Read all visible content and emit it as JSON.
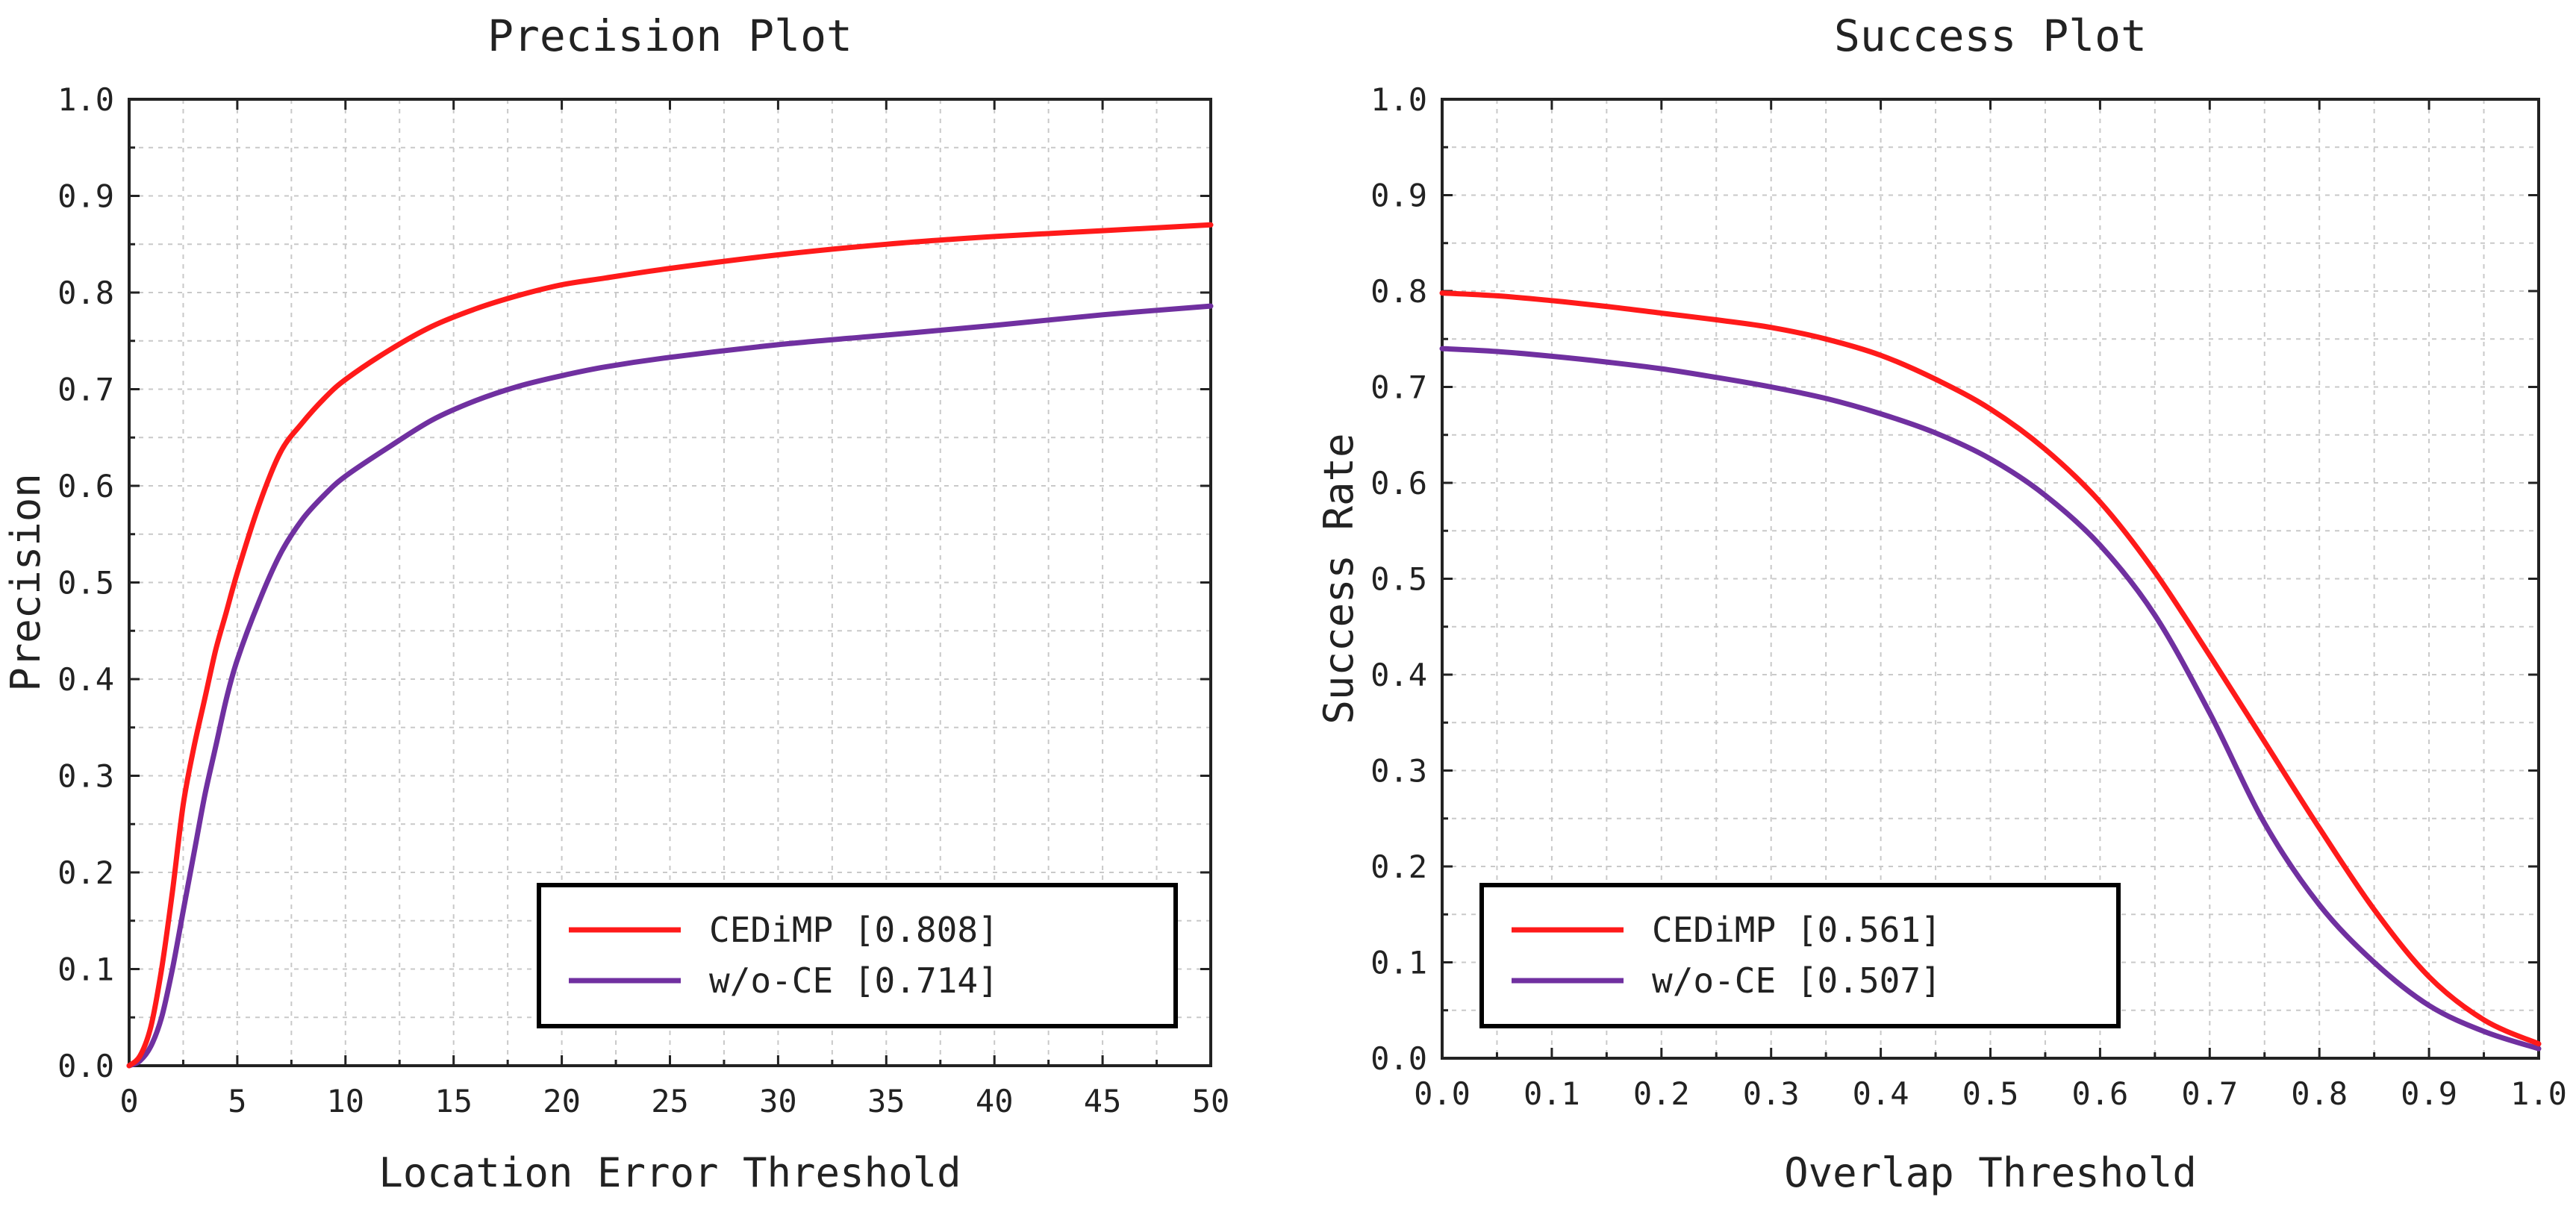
{
  "chart_data": [
    {
      "type": "line",
      "title": "Precision Plot",
      "xlabel": "Location Error Threshold",
      "ylabel": "Precision",
      "xlim": [
        0,
        50
      ],
      "ylim": [
        0,
        1
      ],
      "xticks": [
        "0",
        "5",
        "10",
        "15",
        "20",
        "25",
        "30",
        "35",
        "40",
        "45",
        "50"
      ],
      "yticks": [
        "0.0",
        "0.1",
        "0.2",
        "0.3",
        "0.4",
        "0.5",
        "0.6",
        "0.7",
        "0.8",
        "0.9",
        "1.0"
      ],
      "grid": true,
      "legend_position": "bottom-right",
      "x": [
        0,
        0.5,
        1,
        1.5,
        2,
        2.5,
        3,
        3.5,
        4,
        4.5,
        5,
        6,
        7,
        8,
        9,
        10,
        12,
        14,
        16,
        18,
        20,
        22,
        25,
        30,
        35,
        40,
        45,
        50
      ],
      "series": [
        {
          "name": "CEDiMP [0.808]",
          "color": "#ff1a1a",
          "values": [
            0.0,
            0.01,
            0.04,
            0.1,
            0.18,
            0.27,
            0.33,
            0.38,
            0.43,
            0.47,
            0.51,
            0.58,
            0.635,
            0.665,
            0.69,
            0.71,
            0.74,
            0.765,
            0.783,
            0.797,
            0.808,
            0.815,
            0.825,
            0.839,
            0.85,
            0.858,
            0.864,
            0.87
          ]
        },
        {
          "name": "w/o-CE [0.714]",
          "color": "#7030a0",
          "values": [
            0.0,
            0.005,
            0.02,
            0.05,
            0.1,
            0.16,
            0.22,
            0.28,
            0.33,
            0.38,
            0.42,
            0.48,
            0.53,
            0.565,
            0.59,
            0.61,
            0.64,
            0.668,
            0.688,
            0.703,
            0.714,
            0.723,
            0.733,
            0.746,
            0.756,
            0.766,
            0.777,
            0.786
          ]
        }
      ]
    },
    {
      "type": "line",
      "title": "Success Plot",
      "xlabel": "Overlap Threshold",
      "ylabel": "Success Rate",
      "xlim": [
        0,
        1
      ],
      "ylim": [
        0,
        1
      ],
      "xticks": [
        "0.0",
        "0.1",
        "0.2",
        "0.3",
        "0.4",
        "0.5",
        "0.6",
        "0.7",
        "0.8",
        "0.9",
        "1.0"
      ],
      "yticks": [
        "0.0",
        "0.1",
        "0.2",
        "0.3",
        "0.4",
        "0.5",
        "0.6",
        "0.7",
        "0.8",
        "0.9",
        "1.0"
      ],
      "grid": true,
      "legend_position": "bottom-left",
      "x": [
        0,
        0.05,
        0.1,
        0.15,
        0.2,
        0.25,
        0.3,
        0.35,
        0.4,
        0.45,
        0.5,
        0.55,
        0.6,
        0.65,
        0.7,
        0.75,
        0.8,
        0.85,
        0.9,
        0.95,
        1.0
      ],
      "series": [
        {
          "name": "CEDiMP [0.561]",
          "color": "#ff1a1a",
          "values": [
            0.798,
            0.795,
            0.79,
            0.784,
            0.777,
            0.77,
            0.762,
            0.75,
            0.733,
            0.708,
            0.677,
            0.635,
            0.58,
            0.507,
            0.42,
            0.33,
            0.24,
            0.155,
            0.085,
            0.04,
            0.015
          ]
        },
        {
          "name": "w/o-CE [0.507]",
          "color": "#7030a0",
          "values": [
            0.74,
            0.737,
            0.732,
            0.726,
            0.719,
            0.71,
            0.7,
            0.688,
            0.672,
            0.652,
            0.625,
            0.587,
            0.535,
            0.462,
            0.36,
            0.245,
            0.16,
            0.1,
            0.055,
            0.028,
            0.01
          ]
        }
      ]
    }
  ]
}
